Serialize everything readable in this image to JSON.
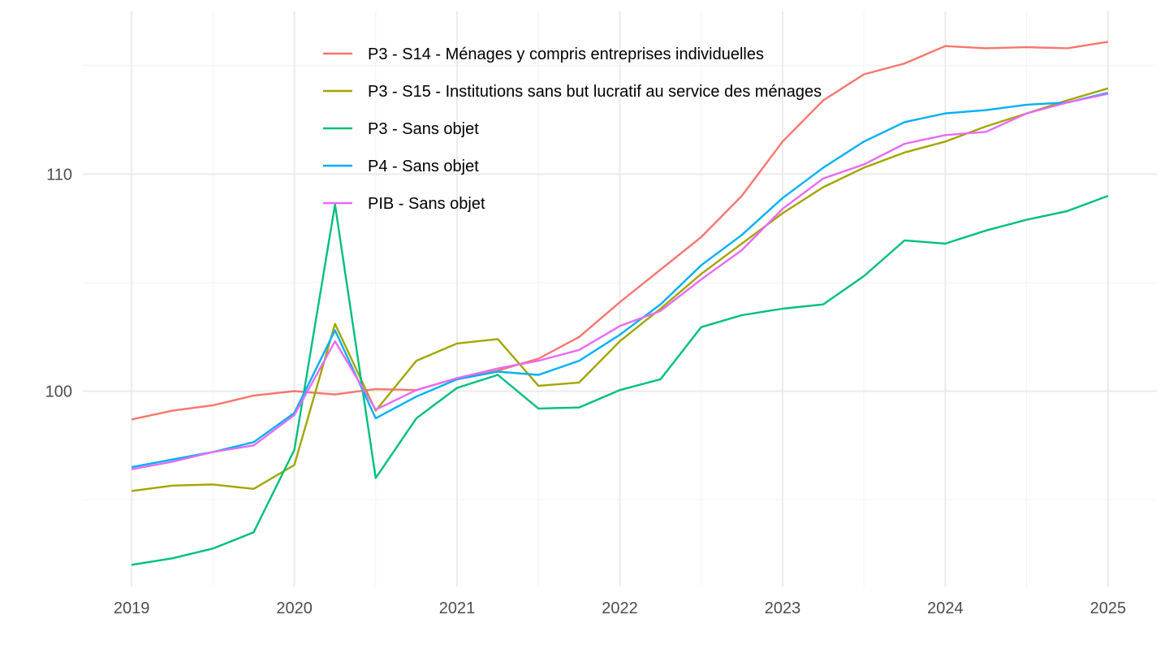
{
  "chart_data": {
    "type": "line",
    "title": "",
    "xlabel": "",
    "ylabel": "",
    "x": [
      2019.0,
      2019.25,
      2019.5,
      2019.75,
      2020.0,
      2020.25,
      2020.5,
      2020.75,
      2021.0,
      2021.25,
      2021.5,
      2021.75,
      2022.0,
      2022.25,
      2022.5,
      2022.75,
      2023.0,
      2023.25,
      2023.5,
      2023.75,
      2024.0,
      2024.25,
      2024.5,
      2024.75,
      2025.0
    ],
    "x_ticks": [
      {
        "value": 2019,
        "label": "2019"
      },
      {
        "value": 2020,
        "label": "2020"
      },
      {
        "value": 2021,
        "label": "2021"
      },
      {
        "value": 2022,
        "label": "2022"
      },
      {
        "value": 2023,
        "label": "2023"
      },
      {
        "value": 2024,
        "label": "2024"
      },
      {
        "value": 2025,
        "label": "2025"
      }
    ],
    "y_ticks": [
      {
        "value": 100,
        "label": "100"
      },
      {
        "value": 110,
        "label": "110"
      }
    ],
    "xlim": [
      2018.7,
      2025.3
    ],
    "ylim": [
      91.0,
      117.5
    ],
    "grid": true,
    "legend_position": "top-center",
    "series": [
      {
        "name": "P3 - S14 - Ménages y compris entreprises individuelles",
        "color": "#F8766D",
        "values": [
          98.7,
          99.1,
          99.35,
          99.8,
          100.0,
          99.85,
          100.1,
          100.05,
          100.6,
          100.95,
          101.5,
          102.5,
          104.1,
          105.6,
          107.1,
          109.0,
          111.5,
          113.4,
          114.6,
          115.1,
          115.9,
          115.8,
          115.85,
          115.8,
          116.1
        ]
      },
      {
        "name": "P3 - S15 - Institutions sans but lucratif au service des ménages",
        "color": "#A3A500",
        "values": [
          95.4,
          95.65,
          95.7,
          95.5,
          96.6,
          103.1,
          99.1,
          101.4,
          102.2,
          102.4,
          100.25,
          100.4,
          102.3,
          103.8,
          105.4,
          106.8,
          108.2,
          109.4,
          110.3,
          111.0,
          111.5,
          112.2,
          112.8,
          113.4,
          113.95
        ]
      },
      {
        "name": "P3 - Sans objet",
        "color": "#00BF7D",
        "values": [
          92.0,
          92.3,
          92.75,
          93.5,
          97.3,
          108.6,
          96.0,
          98.75,
          100.15,
          100.75,
          99.2,
          99.25,
          100.05,
          100.55,
          102.95,
          103.5,
          103.8,
          104.0,
          105.3,
          106.95,
          106.8,
          107.4,
          107.9,
          108.3,
          109.0
        ]
      },
      {
        "name": "P4 - Sans objet",
        "color": "#00B0F6",
        "values": [
          96.5,
          96.85,
          97.2,
          97.65,
          99.0,
          102.8,
          98.75,
          99.75,
          100.55,
          100.9,
          100.75,
          101.4,
          102.6,
          104.0,
          105.8,
          107.2,
          108.9,
          110.3,
          111.5,
          112.4,
          112.8,
          112.95,
          113.2,
          113.3,
          113.75
        ]
      },
      {
        "name": "PIB - Sans objet",
        "color": "#E76BF3",
        "values": [
          96.4,
          96.75,
          97.2,
          97.5,
          98.9,
          102.3,
          99.15,
          100.05,
          100.6,
          101.05,
          101.4,
          101.9,
          103.0,
          103.7,
          105.15,
          106.5,
          108.4,
          109.8,
          110.45,
          111.4,
          111.8,
          111.95,
          112.8,
          113.3,
          113.7
        ]
      }
    ]
  }
}
